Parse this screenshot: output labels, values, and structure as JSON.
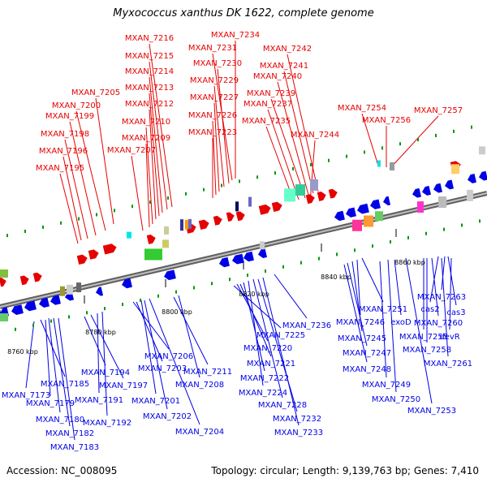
{
  "title": "Myxococcus xanthus DK 1622, complete genome",
  "footer": {
    "accession": "Accession: NC_008095",
    "summary": "Topology: circular; Length: 9,139,763 bp; Genes: 7,410"
  },
  "colors": {
    "forward": "#e60000",
    "reverse": "#0000e6",
    "backbone": "#808080",
    "marker": "#009900",
    "cyan": "#00e6e6"
  },
  "axis_ticks": [
    "8760 kbp",
    "8780 kbp",
    "8800 kbp",
    "8820 kbp",
    "8840 kbp",
    "8860 kbp"
  ],
  "top_labels": [
    "MXAN_7216",
    "MXAN_7215",
    "MXAN_7214",
    "MXAN_7213",
    "MXAN_7212",
    "MXAN_7210",
    "MXAN_7209",
    "MXAN_7207",
    "MXAN_7205",
    "MXAN_7200",
    "MXAN_7199",
    "MXAN_7198",
    "MXAN_7196",
    "MXAN_7195",
    "MXAN_7234",
    "MXAN_7231",
    "MXAN_7230",
    "MXAN_7229",
    "MXAN_7227",
    "MXAN_7226",
    "MXAN_7223",
    "MXAN_7242",
    "MXAN_7241",
    "MXAN_7240",
    "MXAN_7239",
    "MXAN_7237",
    "MXAN_7235",
    "MXAN_7244",
    "MXAN_7254",
    "MXAN_7256",
    "MXAN_7257"
  ],
  "bottom_labels": [
    "MXAN_7173",
    "MXAN_7185",
    "MXAN_7179",
    "MXAN_7180",
    "MXAN_7182",
    "MXAN_7183",
    "MXAN_7194",
    "MXAN_7197",
    "MXAN_7191",
    "MXAN_7192",
    "MXAN_7206",
    "MXAN_7203",
    "MXAN_7201",
    "MXAN_7202",
    "MXAN_7204",
    "MXAN_7211",
    "MXAN_7208",
    "MXAN_7225",
    "MXAN_7220",
    "MXAN_7221",
    "MXAN_7222",
    "MXAN_7224",
    "MXAN_7228",
    "MXAN_7232",
    "MXAN_7233",
    "MXAN_7236",
    "MXAN_7251",
    "MXAN_7246",
    "MXAN_7245",
    "MXAN_7247",
    "MXAN_7248",
    "MXAN_7249",
    "MXAN_7250",
    "MXAN_7253",
    "exoD",
    "MXAN_7255",
    "MXAN_7260",
    "MXAN_7258",
    "MXAN_7263",
    "cas2",
    "cas3",
    "devR",
    "MXAN_7261"
  ]
}
